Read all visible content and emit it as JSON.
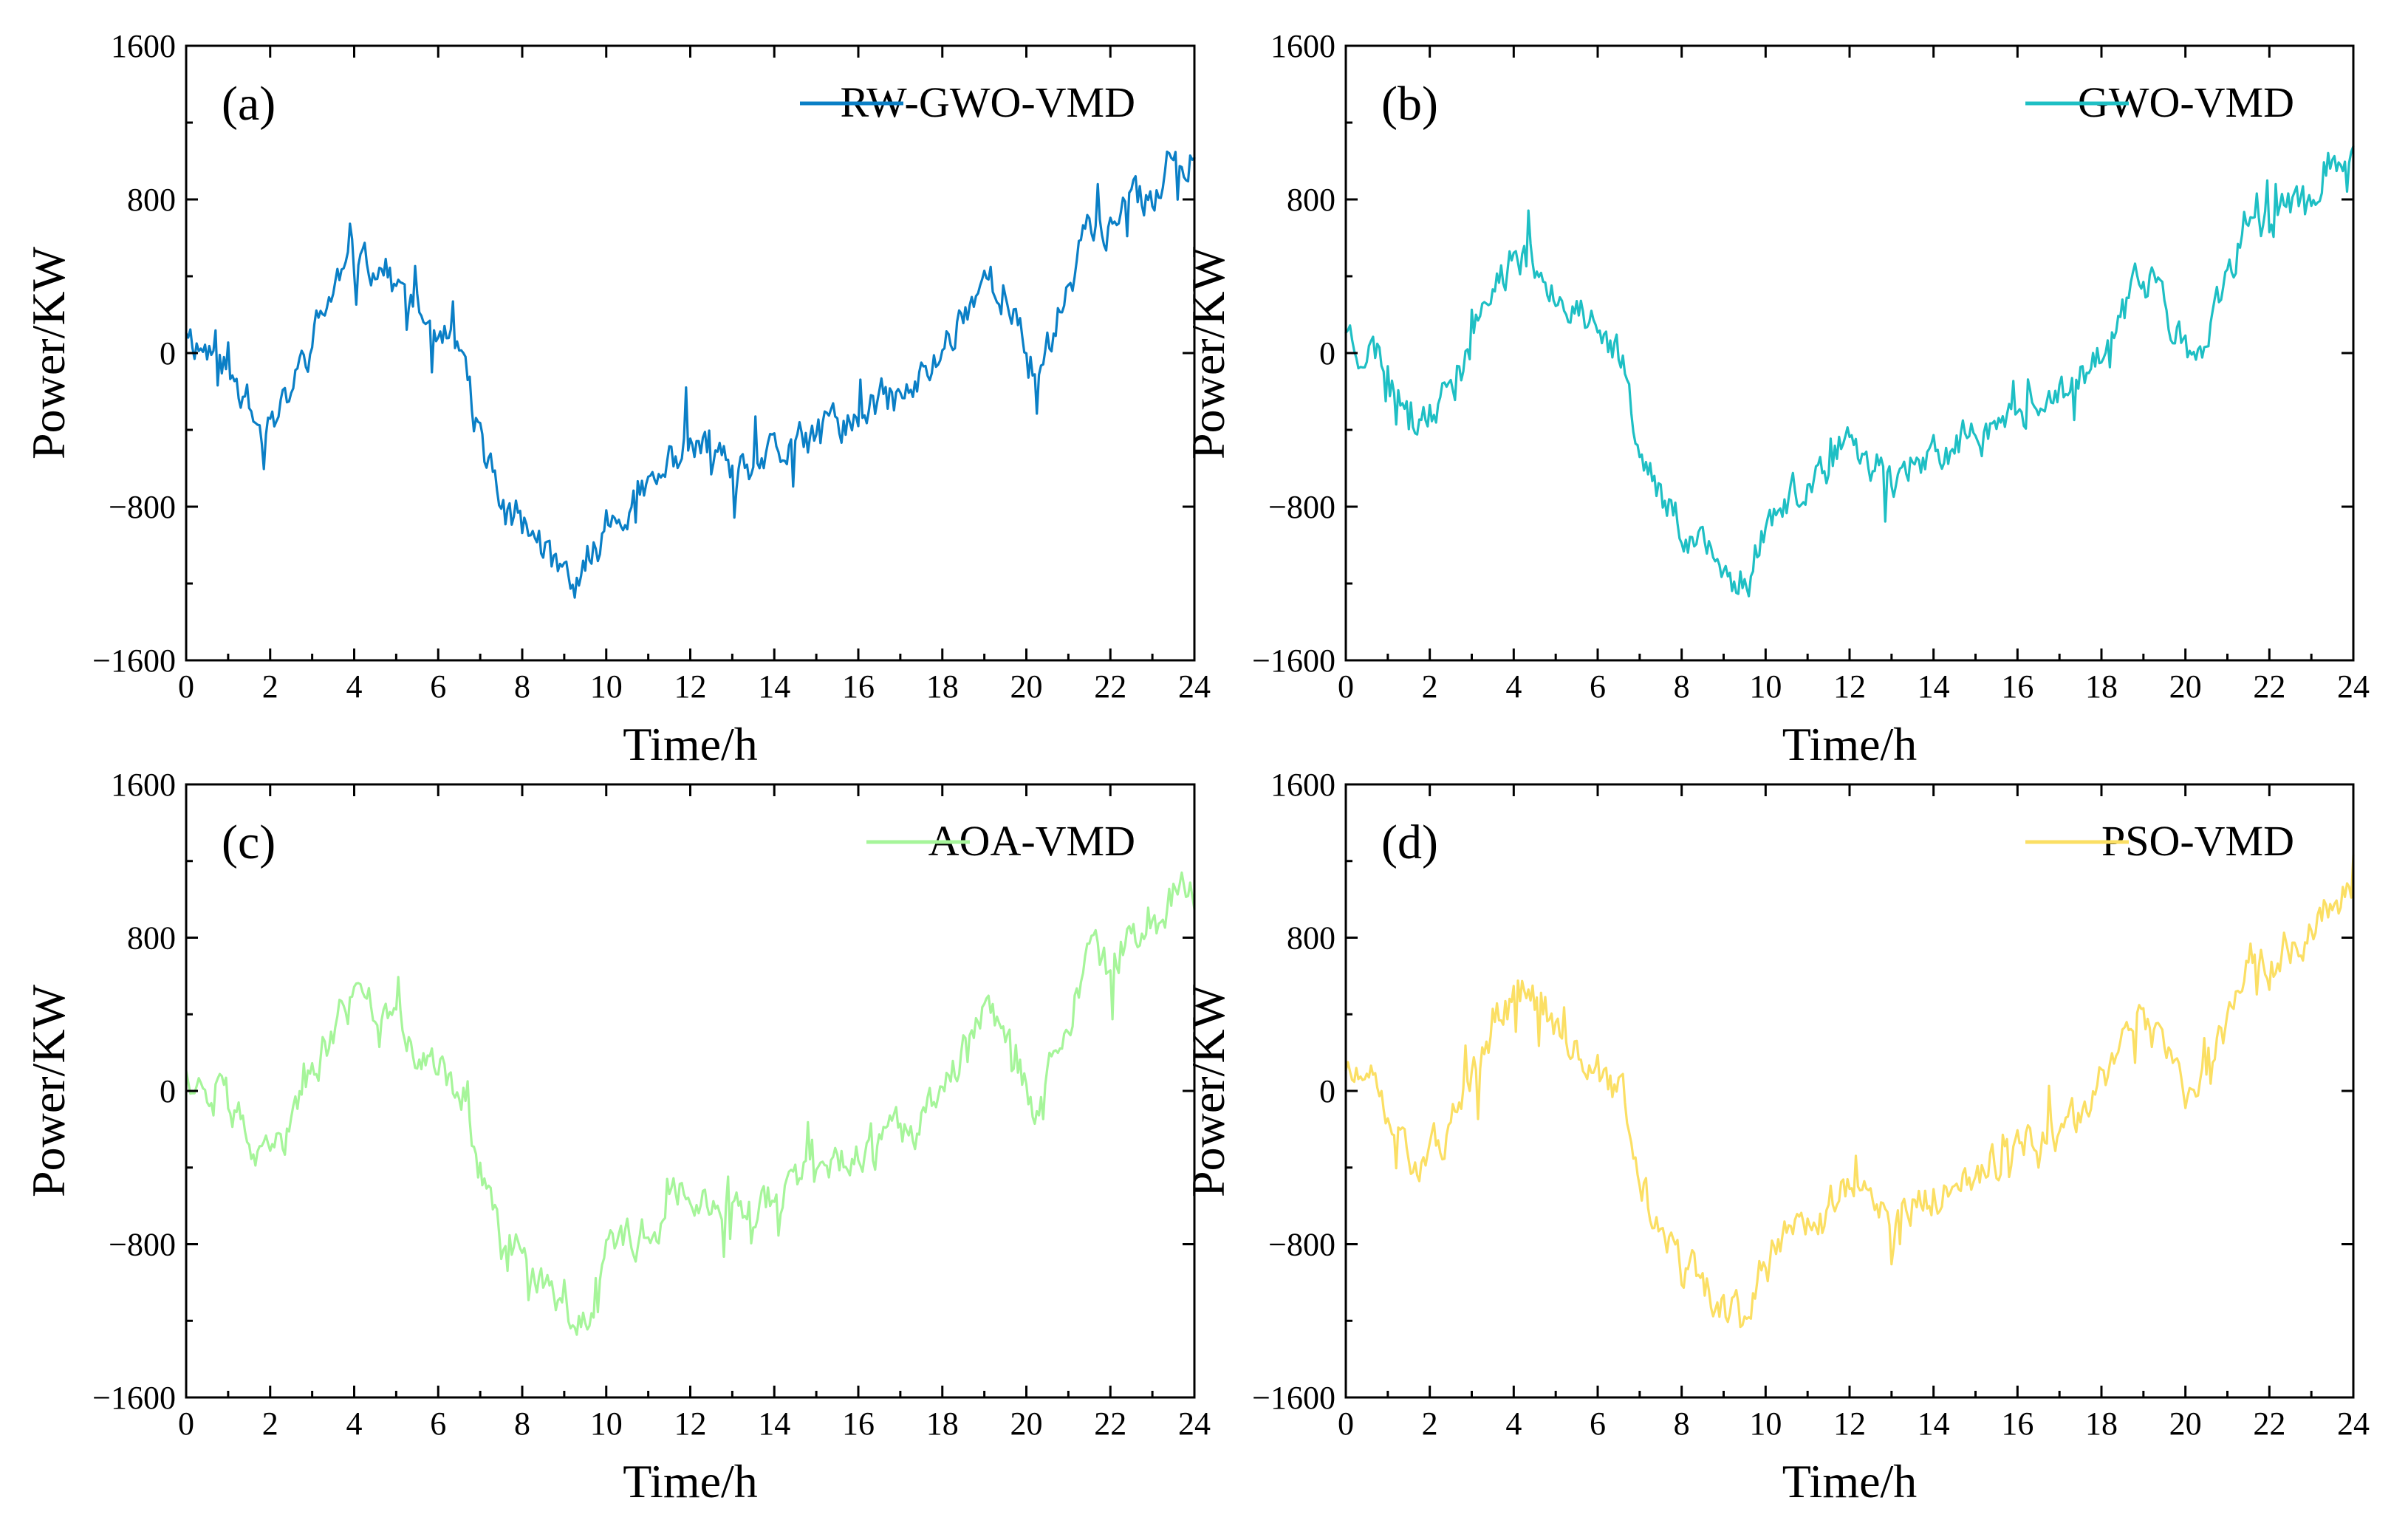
{
  "chart_data": [
    {
      "type": "line",
      "panel_label": "(a)",
      "title": "",
      "xlabel": "Time/h",
      "ylabel": "Power/KW",
      "xlim": [
        0,
        24
      ],
      "ylim": [
        -1600,
        1600
      ],
      "xticks": [
        "0",
        "2",
        "4",
        "6",
        "8",
        "10",
        "12",
        "14",
        "16",
        "18",
        "20",
        "22",
        "24"
      ],
      "yticks": [
        "−1600",
        "−800",
        "0",
        "800",
        "1600"
      ],
      "legend": "top-right",
      "series": [
        {
          "name": "RW-GWO-VMD",
          "color": "#0a7fc6",
          "seed": 11
        }
      ]
    },
    {
      "type": "line",
      "panel_label": "(b)",
      "title": "",
      "xlabel": "Time/h",
      "ylabel": "Power/KW",
      "xlim": [
        0,
        24
      ],
      "ylim": [
        -1600,
        1600
      ],
      "xticks": [
        "0",
        "2",
        "4",
        "6",
        "8",
        "10",
        "12",
        "14",
        "16",
        "18",
        "20",
        "22",
        "24"
      ],
      "yticks": [
        "−1600",
        "−800",
        "0",
        "800",
        "1600"
      ],
      "legend": "top-right",
      "series": [
        {
          "name": "GWO-VMD",
          "color": "#1ebfc4",
          "seed": 23
        }
      ]
    },
    {
      "type": "line",
      "panel_label": "(c)",
      "title": "",
      "xlabel": "Time/h",
      "ylabel": "Power/KW",
      "xlim": [
        0,
        24
      ],
      "ylim": [
        -1600,
        1600
      ],
      "xticks": [
        "0",
        "2",
        "4",
        "6",
        "8",
        "10",
        "12",
        "14",
        "16",
        "18",
        "20",
        "22",
        "24"
      ],
      "yticks": [
        "−1600",
        "−800",
        "0",
        "800",
        "1600"
      ],
      "legend": "top-right",
      "series": [
        {
          "name": "AOA-VMD",
          "color": "#a6f59a",
          "seed": 37
        }
      ]
    },
    {
      "type": "line",
      "panel_label": "(d)",
      "title": "",
      "xlabel": "Time/h",
      "ylabel": "Power/KW",
      "xlim": [
        0,
        24
      ],
      "ylim": [
        -1600,
        1600
      ],
      "xticks": [
        "0",
        "2",
        "4",
        "6",
        "8",
        "10",
        "12",
        "14",
        "16",
        "18",
        "20",
        "22",
        "24"
      ],
      "yticks": [
        "−1600",
        "−800",
        "0",
        "800",
        "1600"
      ],
      "legend": "top-right",
      "series": [
        {
          "name": "PSO-VMD",
          "color": "#fbdf64",
          "seed": 51
        }
      ]
    }
  ],
  "base_curve": {
    "description_points_h_kw": [
      [
        0,
        150
      ],
      [
        0.3,
        40
      ],
      [
        0.8,
        0
      ],
      [
        1.3,
        -180
      ],
      [
        1.8,
        -420
      ],
      [
        2.2,
        -280
      ],
      [
        2.6,
        -150
      ],
      [
        3.1,
        120
      ],
      [
        3.6,
        380
      ],
      [
        4.2,
        520
      ],
      [
        4.7,
        440
      ],
      [
        5.3,
        260
      ],
      [
        6.0,
        100
      ],
      [
        6.6,
        -20
      ],
      [
        7.0,
        -460
      ],
      [
        7.5,
        -760
      ],
      [
        8.0,
        -880
      ],
      [
        8.6,
        -1040
      ],
      [
        9.1,
        -1190
      ],
      [
        9.6,
        -1150
      ],
      [
        10.0,
        -870
      ],
      [
        10.6,
        -760
      ],
      [
        11.2,
        -690
      ],
      [
        11.8,
        -480
      ],
      [
        12.4,
        -520
      ],
      [
        13.0,
        -650
      ],
      [
        13.6,
        -580
      ],
      [
        14.2,
        -520
      ],
      [
        14.8,
        -460
      ],
      [
        15.4,
        -380
      ],
      [
        16.0,
        -320
      ],
      [
        16.6,
        -250
      ],
      [
        17.2,
        -220
      ],
      [
        17.8,
        -60
      ],
      [
        18.4,
        180
      ],
      [
        19.0,
        400
      ],
      [
        19.4,
        330
      ],
      [
        19.8,
        120
      ],
      [
        20.2,
        -120
      ],
      [
        20.6,
        100
      ],
      [
        21.0,
        350
      ],
      [
        21.5,
        720
      ],
      [
        22.0,
        650
      ],
      [
        22.5,
        780
      ],
      [
        23.0,
        820
      ],
      [
        23.5,
        1020
      ],
      [
        24,
        1050
      ]
    ],
    "noise_amplitude_kw": 110,
    "samples": 480
  }
}
